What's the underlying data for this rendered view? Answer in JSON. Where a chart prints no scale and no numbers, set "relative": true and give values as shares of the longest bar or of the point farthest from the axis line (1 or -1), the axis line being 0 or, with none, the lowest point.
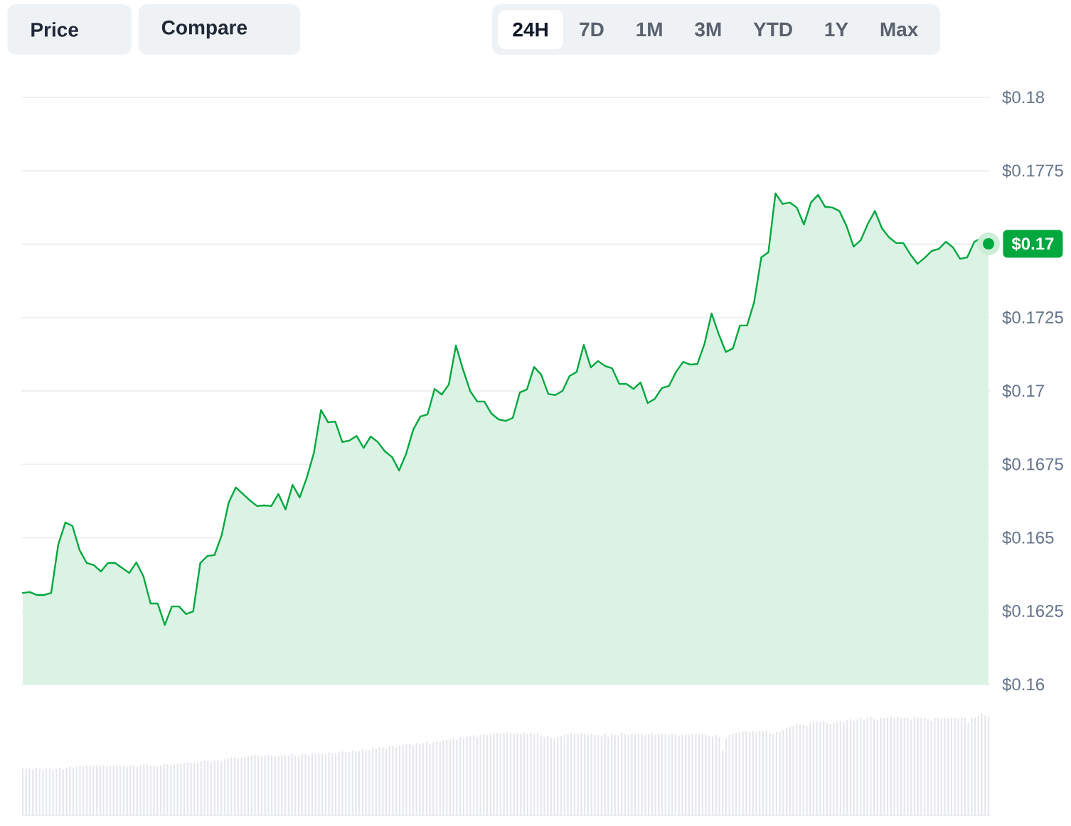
{
  "chart_data": [
    {
      "type": "other",
      "annotations": [
        "Price",
        "Compare",
        "24H",
        "7D",
        "1M",
        "3M",
        "YTD",
        "1Y",
        "Max"
      ]
    },
    {
      "type": "area",
      "color": "#00a83e",
      "grid": "y",
      "tick_labels": "y",
      "ylim": [
        0.16,
        0.18
      ],
      "yticks": [
        {
          "value": 0.16,
          "label": "$0.16"
        },
        {
          "value": 0.1625,
          "label": "$0.1625"
        },
        {
          "value": 0.165,
          "label": "$0.165"
        },
        {
          "value": 0.1675,
          "label": "$0.1675"
        },
        {
          "value": 0.17,
          "label": "$0.17"
        },
        {
          "value": 0.1725,
          "label": "$0.1725"
        },
        {
          "value": 0.175,
          "label": null
        },
        {
          "value": 0.1775,
          "label": "$0.1775"
        },
        {
          "value": 0.18,
          "label": "$0.18"
        }
      ],
      "categories": [
        null,
        null,
        null,
        null,
        null,
        null,
        null,
        null,
        null,
        null,
        null,
        null,
        null,
        null,
        null,
        null,
        null,
        null,
        null,
        null,
        null,
        null,
        null,
        null,
        null,
        null,
        null,
        null,
        null,
        null,
        null,
        null,
        null,
        null,
        null,
        null,
        null,
        null,
        null,
        null,
        null,
        null,
        null,
        null,
        null,
        null,
        null,
        null,
        null,
        null,
        null,
        null,
        null,
        null,
        null,
        null,
        null,
        null,
        null,
        null,
        null,
        null,
        null,
        null,
        null,
        null,
        null,
        null,
        null,
        null,
        null,
        null,
        null,
        null,
        null,
        null,
        null,
        null,
        null,
        null,
        null,
        null,
        null,
        null,
        null,
        null,
        null,
        null,
        null,
        null,
        null,
        null,
        null,
        null,
        null,
        null,
        null,
        null,
        null,
        null,
        null,
        null,
        null,
        null,
        null,
        null,
        null,
        null,
        null,
        null,
        null,
        null,
        null,
        null,
        null,
        null,
        null,
        null,
        null,
        null,
        null,
        null,
        null,
        null,
        null,
        null,
        null,
        null,
        null,
        null,
        null,
        null,
        null,
        null,
        null,
        null,
        null
      ],
      "values": [
        0.16312,
        0.16315,
        0.16305,
        0.16305,
        0.16312,
        0.16477,
        0.16552,
        0.1654,
        0.16458,
        0.16414,
        0.16407,
        0.16385,
        0.16414,
        0.16414,
        0.16397,
        0.1638,
        0.16416,
        0.16368,
        0.16276,
        0.16276,
        0.16203,
        0.16266,
        0.16266,
        0.1624,
        0.16249,
        0.16414,
        0.16438,
        0.16441,
        0.16508,
        0.1662,
        0.16671,
        0.16649,
        0.16627,
        0.16608,
        0.1661,
        0.16608,
        0.16649,
        0.16596,
        0.1668,
        0.16637,
        0.16705,
        0.16789,
        0.16935,
        0.16893,
        0.16896,
        0.16826,
        0.16831,
        0.16847,
        0.16806,
        0.16845,
        0.16826,
        0.16794,
        0.16775,
        0.16729,
        0.16787,
        0.16869,
        0.16913,
        0.1692,
        0.17007,
        0.16988,
        0.17022,
        0.17155,
        0.17073,
        0.17,
        0.16964,
        0.16964,
        0.16923,
        0.16903,
        0.16898,
        0.16908,
        0.16995,
        0.17005,
        0.17082,
        0.17056,
        0.1699,
        0.16986,
        0.17,
        0.17051,
        0.17065,
        0.17157,
        0.1708,
        0.17102,
        0.17085,
        0.17077,
        0.17024,
        0.17024,
        0.17007,
        0.17029,
        0.16959,
        0.16973,
        0.1701,
        0.17017,
        0.17065,
        0.17099,
        0.1709,
        0.17092,
        0.1716,
        0.17264,
        0.17194,
        0.17133,
        0.17145,
        0.17223,
        0.17223,
        0.17303,
        0.17455,
        0.17472,
        0.17673,
        0.17637,
        0.17642,
        0.17625,
        0.17567,
        0.17642,
        0.17668,
        0.17627,
        0.17625,
        0.17613,
        0.17562,
        0.17492,
        0.17513,
        0.17569,
        0.17613,
        0.17554,
        0.17523,
        0.17504,
        0.17504,
        0.17465,
        0.17433,
        0.17453,
        0.17477,
        0.17484,
        0.17508,
        0.17489,
        0.1745,
        0.17455,
        0.17508,
        0.17521,
        0.17501
      ],
      "annotations": [
        "$0.17"
      ]
    },
    {
      "type": "bar",
      "relative": true,
      "color": "#e5e7eb",
      "tick_labels": false,
      "categories": [
        null,
        null,
        null,
        null,
        null,
        null,
        null,
        null,
        null,
        null,
        null,
        null,
        null,
        null,
        null,
        null,
        null,
        null,
        null,
        null,
        null,
        null,
        null,
        null,
        null,
        null,
        null,
        null,
        null,
        null,
        null,
        null,
        null,
        null,
        null,
        null,
        null,
        null,
        null,
        null,
        null,
        null,
        null,
        null,
        null,
        null,
        null,
        null,
        null,
        null,
        null,
        null,
        null,
        null,
        null,
        null,
        null,
        null,
        null,
        null,
        null,
        null,
        null,
        null,
        null,
        null,
        null,
        null,
        null,
        null,
        null,
        null,
        null,
        null,
        null,
        null,
        null,
        null,
        null,
        null,
        null,
        null,
        null,
        null,
        null,
        null,
        null,
        null,
        null,
        null,
        null,
        null,
        null,
        null,
        null,
        null,
        null,
        null,
        null,
        null,
        null,
        null,
        null,
        null,
        null,
        null,
        null,
        null,
        null,
        null,
        null,
        null,
        null,
        null,
        null,
        null,
        null,
        null,
        null,
        null,
        null,
        null,
        null,
        null,
        null,
        null,
        null,
        null,
        null,
        null,
        null,
        null,
        null,
        null,
        null,
        null,
        null,
        null,
        null,
        null,
        null,
        null,
        null,
        null,
        null,
        null,
        null,
        null,
        null,
        null,
        null,
        null,
        null,
        null,
        null,
        null,
        null,
        null,
        null,
        null,
        null,
        null,
        null,
        null,
        null,
        null,
        null,
        null,
        null,
        null,
        null,
        null,
        null,
        null,
        null,
        null,
        null,
        null,
        null,
        null,
        null,
        null,
        null,
        null,
        null,
        null,
        null,
        null,
        null,
        null,
        null,
        null,
        null,
        null,
        null,
        null,
        null,
        null,
        null,
        null,
        null,
        null,
        null,
        null,
        null,
        null,
        null,
        null,
        null,
        null,
        null,
        null,
        null,
        null,
        null,
        null,
        null,
        null,
        null,
        null,
        null,
        null,
        null,
        null,
        null,
        null,
        null,
        null,
        null,
        null,
        null,
        null,
        null,
        null,
        null,
        null,
        null,
        null,
        null,
        null,
        null,
        null,
        null,
        null,
        null,
        null,
        null,
        null,
        null,
        null,
        null,
        null,
        null,
        null,
        null,
        null,
        null,
        null,
        null,
        null,
        null,
        null,
        null,
        null,
        null,
        null,
        null,
        null,
        null,
        null,
        null,
        null,
        null,
        null,
        null,
        null,
        null,
        null,
        null,
        null,
        null,
        null,
        null,
        null,
        null,
        null,
        null,
        null
      ],
      "values": [
        0.46,
        0.46,
        0.46,
        0.45,
        0.46,
        0.46,
        0.45,
        0.46,
        0.46,
        0.45,
        0.46,
        0.47,
        0.45,
        0.47,
        0.48,
        0.47,
        0.48,
        0.49,
        0.48,
        0.49,
        0.49,
        0.49,
        0.49,
        0.49,
        0.49,
        0.49,
        0.48,
        0.49,
        0.49,
        0.49,
        0.49,
        0.48,
        0.49,
        0.49,
        0.48,
        0.49,
        0.5,
        0.5,
        0.49,
        0.49,
        0.48,
        0.49,
        0.5,
        0.5,
        0.49,
        0.5,
        0.51,
        0.51,
        0.52,
        0.52,
        0.51,
        0.52,
        0.52,
        0.53,
        0.54,
        0.53,
        0.52,
        0.54,
        0.54,
        0.53,
        0.55,
        0.56,
        0.57,
        0.57,
        0.56,
        0.57,
        0.57,
        0.58,
        0.59,
        0.59,
        0.59,
        0.58,
        0.59,
        0.59,
        0.59,
        0.58,
        0.59,
        0.59,
        0.59,
        0.59,
        0.6,
        0.59,
        0.59,
        0.6,
        0.6,
        0.59,
        0.61,
        0.6,
        0.61,
        0.61,
        0.6,
        0.62,
        0.61,
        0.61,
        0.62,
        0.63,
        0.62,
        0.62,
        0.64,
        0.63,
        0.63,
        0.65,
        0.64,
        0.64,
        0.66,
        0.65,
        0.67,
        0.67,
        0.66,
        0.68,
        0.68,
        0.67,
        0.69,
        0.69,
        0.7,
        0.7,
        0.69,
        0.71,
        0.7,
        0.71,
        0.72,
        0.7,
        0.72,
        0.73,
        0.72,
        0.74,
        0.74,
        0.75,
        0.76,
        0.74,
        0.77,
        0.76,
        0.77,
        0.78,
        0.79,
        0.77,
        0.79,
        0.8,
        0.79,
        0.8,
        0.81,
        0.81,
        0.8,
        0.81,
        0.82,
        0.81,
        0.8,
        0.81,
        0.8,
        0.81,
        0.8,
        0.81,
        0.8,
        0.81,
        0.79,
        0.77,
        0.78,
        0.76,
        0.76,
        0.77,
        0.78,
        0.79,
        0.8,
        0.81,
        0.8,
        0.8,
        0.81,
        0.8,
        0.79,
        0.8,
        0.79,
        0.79,
        0.78,
        0.8,
        0.77,
        0.8,
        0.79,
        0.79,
        0.81,
        0.8,
        0.79,
        0.8,
        0.8,
        0.8,
        0.8,
        0.79,
        0.8,
        0.81,
        0.79,
        0.8,
        0.8,
        0.8,
        0.79,
        0.8,
        0.8,
        0.78,
        0.79,
        0.79,
        0.79,
        0.8,
        0.8,
        0.8,
        0.8,
        0.79,
        0.78,
        0.78,
        0.79,
        0.77,
        0.64,
        0.76,
        0.79,
        0.8,
        0.81,
        0.82,
        0.82,
        0.83,
        0.82,
        0.83,
        0.82,
        0.83,
        0.83,
        0.83,
        0.81,
        0.8,
        0.82,
        0.82,
        0.84,
        0.86,
        0.87,
        0.88,
        0.9,
        0.89,
        0.89,
        0.88,
        0.91,
        0.92,
        0.92,
        0.92,
        0.93,
        0.91,
        0.9,
        0.91,
        0.92,
        0.93,
        0.92,
        0.94,
        0.95,
        0.93,
        0.94,
        0.96,
        0.94,
        0.96,
        0.97,
        0.95,
        0.94,
        0.96,
        0.96,
        0.96,
        0.97,
        0.96,
        0.97,
        0.96,
        0.96,
        0.96,
        0.94,
        0.97,
        0.96,
        0.96,
        0.96,
        0.95,
        0.93,
        0.96,
        0.96,
        0.95,
        0.96,
        0.96,
        0.96,
        0.96,
        0.95,
        0.96,
        0.96,
        0.91,
        0.96,
        0.96,
        0.98,
        1.0,
        0.98,
        0.97
      ]
    }
  ]
}
